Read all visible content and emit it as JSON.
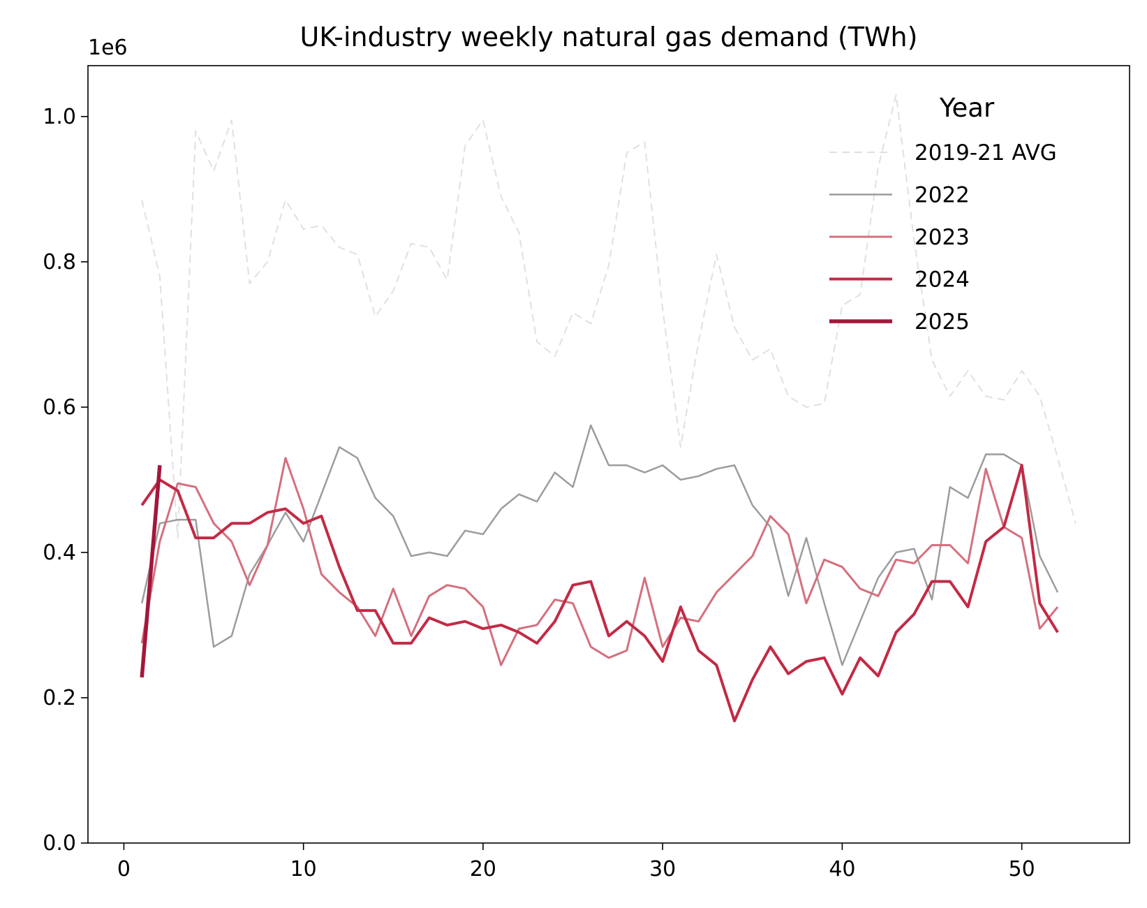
{
  "chart_data": {
    "type": "line",
    "title": "UK-industry weekly natural gas demand (TWh)",
    "xlabel": "",
    "ylabel": "",
    "y_scale_label": "1e6",
    "xlim": [
      -2,
      56
    ],
    "ylim": [
      0,
      1070000
    ],
    "x_ticks": [
      0,
      10,
      20,
      30,
      40,
      50
    ],
    "y_ticks": [
      0,
      200000,
      400000,
      600000,
      800000,
      1000000
    ],
    "y_tick_labels": [
      "0.0",
      "0.2",
      "0.4",
      "0.6",
      "0.8",
      "1.0"
    ],
    "grid": false,
    "legend": {
      "title": "Year",
      "placement": "top-right"
    },
    "series": [
      {
        "name": "2019-21 AVG",
        "color": "#e0e0e0",
        "dashed": true,
        "width": 2,
        "x": [
          1,
          2,
          3,
          4,
          5,
          6,
          7,
          8,
          9,
          10,
          11,
          12,
          13,
          14,
          15,
          16,
          17,
          18,
          19,
          20,
          21,
          22,
          23,
          24,
          25,
          26,
          27,
          28,
          29,
          30,
          31,
          32,
          33,
          34,
          35,
          36,
          37,
          38,
          39,
          40,
          41,
          42,
          43,
          44,
          45,
          46,
          47,
          48,
          49,
          50,
          51,
          52,
          53
        ],
        "values": [
          885000,
          780000,
          420000,
          980000,
          925000,
          995000,
          770000,
          800000,
          885000,
          845000,
          850000,
          820000,
          810000,
          725000,
          760000,
          825000,
          820000,
          775000,
          960000,
          995000,
          890000,
          840000,
          690000,
          670000,
          730000,
          715000,
          795000,
          950000,
          965000,
          735000,
          545000,
          690000,
          810000,
          710000,
          665000,
          680000,
          615000,
          600000,
          605000,
          740000,
          755000,
          930000,
          1030000,
          830000,
          665000,
          615000,
          650000,
          615000,
          610000,
          650000,
          615000,
          530000,
          440000
        ]
      },
      {
        "name": "2022",
        "color": "#9c9c9c",
        "dashed": false,
        "width": 2.5,
        "x": [
          1,
          2,
          3,
          4,
          5,
          6,
          7,
          8,
          9,
          10,
          11,
          12,
          13,
          14,
          15,
          16,
          17,
          18,
          19,
          20,
          21,
          22,
          23,
          24,
          25,
          26,
          27,
          28,
          29,
          30,
          31,
          32,
          33,
          34,
          35,
          36,
          37,
          38,
          39,
          40,
          41,
          42,
          43,
          44,
          45,
          46,
          47,
          48,
          49,
          50,
          51,
          52
        ],
        "values": [
          330000,
          440000,
          445000,
          445000,
          270000,
          285000,
          370000,
          410000,
          455000,
          415000,
          480000,
          545000,
          530000,
          475000,
          450000,
          395000,
          400000,
          395000,
          430000,
          425000,
          460000,
          480000,
          470000,
          510000,
          490000,
          575000,
          520000,
          520000,
          510000,
          520000,
          500000,
          505000,
          515000,
          520000,
          465000,
          435000,
          340000,
          420000,
          330000,
          245000,
          305000,
          365000,
          400000,
          405000,
          335000,
          490000,
          475000,
          535000,
          535000,
          520000,
          395000,
          345000
        ]
      },
      {
        "name": "2023",
        "color": "#d4707e",
        "dashed": false,
        "width": 3,
        "x": [
          1,
          2,
          3,
          4,
          5,
          6,
          7,
          8,
          9,
          10,
          11,
          12,
          13,
          14,
          15,
          16,
          17,
          18,
          19,
          20,
          21,
          22,
          23,
          24,
          25,
          26,
          27,
          28,
          29,
          30,
          31,
          32,
          33,
          34,
          35,
          36,
          37,
          38,
          39,
          40,
          41,
          42,
          43,
          44,
          45,
          46,
          47,
          48,
          49,
          50,
          51,
          52
        ],
        "values": [
          275000,
          415000,
          495000,
          490000,
          440000,
          415000,
          355000,
          410000,
          530000,
          460000,
          370000,
          345000,
          325000,
          285000,
          350000,
          285000,
          340000,
          355000,
          350000,
          325000,
          245000,
          295000,
          300000,
          335000,
          330000,
          270000,
          255000,
          265000,
          365000,
          270000,
          310000,
          305000,
          345000,
          370000,
          395000,
          450000,
          425000,
          330000,
          390000,
          380000,
          350000,
          340000,
          390000,
          385000,
          410000,
          410000,
          385000,
          515000,
          435000,
          420000,
          295000,
          325000
        ]
      },
      {
        "name": "2024",
        "color": "#c22a45",
        "dashed": false,
        "width": 4,
        "x": [
          1,
          2,
          3,
          4,
          5,
          6,
          7,
          8,
          9,
          10,
          11,
          12,
          13,
          14,
          15,
          16,
          17,
          18,
          19,
          20,
          21,
          22,
          23,
          24,
          25,
          26,
          27,
          28,
          29,
          30,
          31,
          32,
          33,
          34,
          35,
          36,
          37,
          38,
          39,
          40,
          41,
          42,
          43,
          44,
          45,
          46,
          47,
          48,
          49,
          50,
          51,
          52
        ],
        "values": [
          465000,
          500000,
          485000,
          420000,
          420000,
          440000,
          440000,
          455000,
          460000,
          440000,
          450000,
          380000,
          320000,
          320000,
          275000,
          275000,
          310000,
          300000,
          305000,
          295000,
          300000,
          290000,
          275000,
          305000,
          355000,
          360000,
          285000,
          305000,
          285000,
          250000,
          325000,
          265000,
          245000,
          168000,
          225000,
          270000,
          233000,
          250000,
          255000,
          205000,
          255000,
          230000,
          290000,
          315000,
          360000,
          360000,
          325000,
          415000,
          435000,
          520000,
          330000,
          290000
        ]
      },
      {
        "name": "2025",
        "color": "#a3173b",
        "dashed": false,
        "width": 5.5,
        "x": [
          1,
          2
        ],
        "values": [
          228000,
          520000
        ]
      }
    ]
  }
}
